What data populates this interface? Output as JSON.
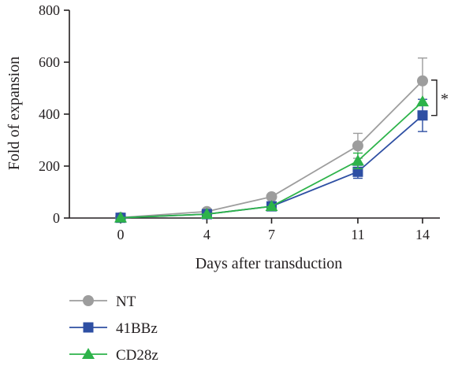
{
  "chart_data": {
    "type": "line",
    "title": "",
    "xlabel": "Days after transduction",
    "ylabel": "Fold of expansion",
    "x": [
      0,
      4,
      7,
      11,
      14
    ],
    "x_tick_labels": [
      "0",
      "4",
      "7",
      "11",
      "14"
    ],
    "ylim": [
      0,
      800
    ],
    "y_ticks": [
      0,
      200,
      400,
      600,
      800
    ],
    "y_tick_labels": [
      "0",
      "200",
      "400",
      "600",
      "800"
    ],
    "grid": false,
    "legend_position": "bottom-left",
    "series": [
      {
        "name": "NT",
        "color": "#9d9d9d",
        "marker": "circle",
        "values": [
          2,
          25,
          82,
          278,
          528
        ],
        "errors": [
          null,
          null,
          null,
          48,
          88
        ]
      },
      {
        "name": "41BBz",
        "color": "#2e4fa3",
        "marker": "square",
        "values": [
          1,
          15,
          45,
          178,
          395
        ],
        "errors": [
          null,
          null,
          null,
          25,
          62
        ]
      },
      {
        "name": "CD28z",
        "color": "#2db34a",
        "marker": "triangle",
        "values": [
          1,
          15,
          45,
          220,
          448
        ],
        "errors": [
          null,
          null,
          null,
          30,
          null
        ]
      }
    ],
    "annotations": [
      {
        "text": "*",
        "x": 14,
        "y_range": [
          395,
          528
        ]
      }
    ]
  }
}
